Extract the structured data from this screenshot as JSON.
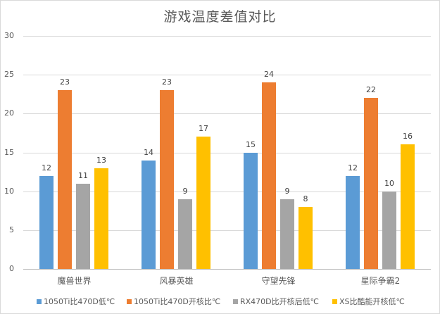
{
  "chart_data": {
    "type": "bar",
    "title": "游戏温度差值对比",
    "categories": [
      "魔兽世界",
      "风暴英雄",
      "守望先锋",
      "星际争霸2"
    ],
    "series": [
      {
        "name": "1050Ti比470D低℃",
        "color": "#5b9bd5",
        "values": [
          12,
          14,
          15,
          12
        ]
      },
      {
        "name": "1050Ti比470D开核比℃",
        "color": "#ed7d31",
        "values": [
          23,
          23,
          24,
          22
        ]
      },
      {
        "name": "RX470D比开核后低℃",
        "color": "#a5a5a5",
        "values": [
          11,
          9,
          9,
          10
        ]
      },
      {
        "name": "XS比酷能开核低℃",
        "color": "#ffc000",
        "values": [
          13,
          17,
          8,
          16
        ]
      }
    ],
    "xlabel": "",
    "ylabel": "",
    "ylim": [
      0,
      30
    ],
    "yticks": [
      "0",
      "5",
      "10",
      "15",
      "20",
      "25",
      "30"
    ],
    "grid": true,
    "legend_position": "bottom",
    "data_labels": true
  },
  "labels": {
    "title": "游戏温度差值对比",
    "yticks": [
      "0",
      "5",
      "10",
      "15",
      "20",
      "25",
      "30"
    ],
    "categories": [
      "魔兽世界",
      "风暴英雄",
      "守望先锋",
      "星际争霸2"
    ],
    "legend": [
      "1050Ti比470D低℃",
      "1050Ti比470D开核比℃",
      "RX470D比开核后低℃",
      "XS比酷能开核低℃"
    ],
    "values": [
      [
        "12",
        "23",
        "11",
        "13"
      ],
      [
        "14",
        "23",
        "9",
        "17"
      ],
      [
        "15",
        "24",
        "9",
        "8"
      ],
      [
        "12",
        "22",
        "10",
        "16"
      ]
    ]
  },
  "colors": {
    "series1": "#5b9bd5",
    "series2": "#ed7d31",
    "series3": "#a5a5a5",
    "series4": "#ffc000",
    "gridline": "#d9d9d9",
    "text": "#595959"
  }
}
